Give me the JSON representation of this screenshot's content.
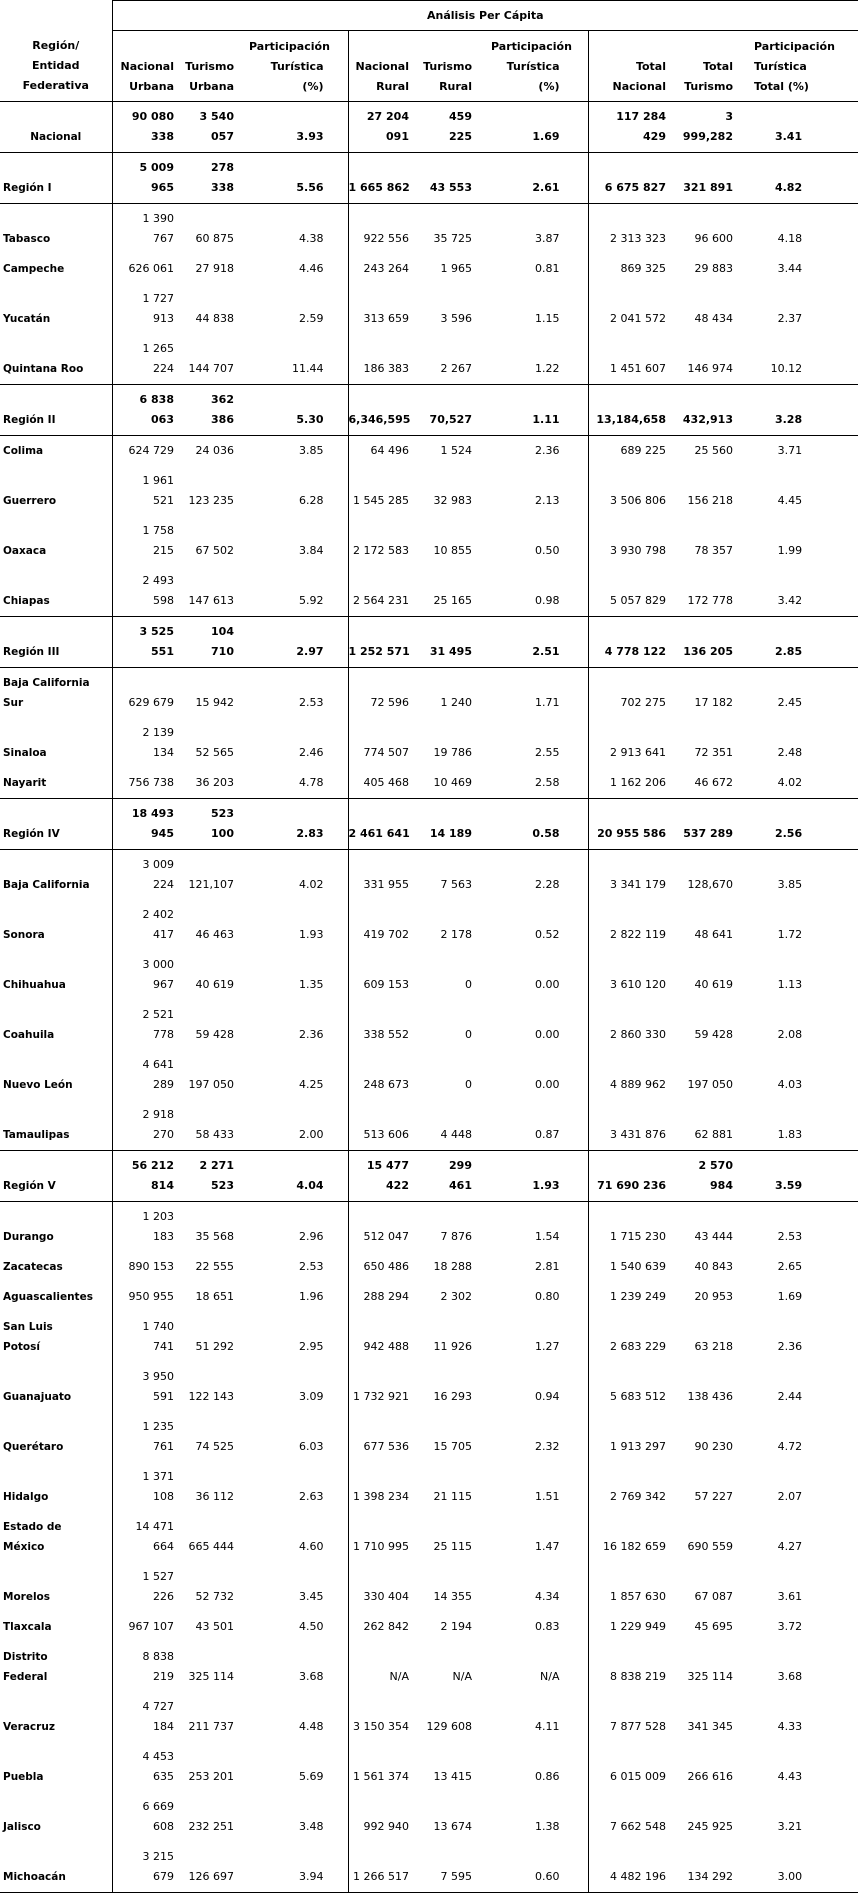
{
  "title": "Análisis Per Cápita",
  "header": {
    "row_label": "Región/\nEntidad\nFederativa",
    "columns": [
      "Nacional\nUrbana",
      "Turismo\nUrbana",
      "Participación\nTurística\n(%)",
      "Nacional\nRural",
      "Turismo\nRural",
      "Participación\nTurística\n(%)",
      "Total\nNacional",
      "Total\nTurismo",
      "Participación\nTurística\nTotal (%)"
    ]
  },
  "rows": [
    {
      "label": "Nacional",
      "summary": true,
      "cells": [
        "90 080\n338",
        "3 540\n057",
        "3.93",
        "27 204\n091",
        "459\n225",
        "1.69",
        "117 284\n429",
        "3\n999,282",
        "3.41"
      ]
    },
    {
      "label": "Región I",
      "summary": true,
      "cells": [
        "5 009\n965",
        "278\n338",
        "5.56",
        "1 665 862",
        "43 553",
        "2.61",
        "6 675 827",
        "321 891",
        "4.82"
      ]
    },
    {
      "label": "Tabasco",
      "summary": false,
      "cells": [
        "1 390\n767",
        "60 875",
        "4.38",
        "922 556",
        "35 725",
        "3.87",
        "2 313 323",
        "96 600",
        "4.18"
      ]
    },
    {
      "label": "Campeche",
      "summary": false,
      "cells": [
        "626 061",
        "27 918",
        "4.46",
        "243 264",
        "1 965",
        "0.81",
        "869 325",
        "29 883",
        "3.44"
      ]
    },
    {
      "label": "Yucatán",
      "summary": false,
      "cells": [
        "1 727\n913",
        "44 838",
        "2.59",
        "313 659",
        "3 596",
        "1.15",
        "2 041 572",
        "48 434",
        "2.37"
      ]
    },
    {
      "label": "Quintana Roo",
      "summary": false,
      "cells": [
        "1 265\n224",
        "144 707",
        "11.44",
        "186 383",
        "2 267",
        "1.22",
        "1 451 607",
        "146 974",
        "10.12"
      ]
    },
    {
      "label": "Región II",
      "summary": true,
      "cells": [
        "6 838\n063",
        "362\n386",
        "5.30",
        "6,346,595",
        "70,527",
        "1.11",
        "13,184,658",
        "432,913",
        "3.28"
      ]
    },
    {
      "label": "Colima",
      "summary": false,
      "cells": [
        "624 729",
        "24 036",
        "3.85",
        "64 496",
        "1 524",
        "2.36",
        "689 225",
        "25 560",
        "3.71"
      ]
    },
    {
      "label": "Guerrero",
      "summary": false,
      "cells": [
        "1 961\n521",
        "123 235",
        "6.28",
        "1 545 285",
        "32 983",
        "2.13",
        "3 506 806",
        "156 218",
        "4.45"
      ]
    },
    {
      "label": "Oaxaca",
      "summary": false,
      "cells": [
        "1 758\n215",
        "67 502",
        "3.84",
        "2 172 583",
        "10 855",
        "0.50",
        "3 930 798",
        "78 357",
        "1.99"
      ]
    },
    {
      "label": "Chiapas",
      "summary": false,
      "cells": [
        "2 493\n598",
        "147 613",
        "5.92",
        "2 564 231",
        "25 165",
        "0.98",
        "5 057 829",
        "172 778",
        "3.42"
      ]
    },
    {
      "label": "Región III",
      "summary": true,
      "cells": [
        "3 525\n551",
        "104\n710",
        "2.97",
        "1 252 571",
        "31 495",
        "2.51",
        "4 778 122",
        "136 205",
        "2.85"
      ]
    },
    {
      "label": "Baja California\nSur",
      "summary": false,
      "cells": [
        "629 679",
        "15 942",
        "2.53",
        "72 596",
        "1 240",
        "1.71",
        "702 275",
        "17 182",
        "2.45"
      ]
    },
    {
      "label": "Sinaloa",
      "summary": false,
      "cells": [
        "2 139\n134",
        "52 565",
        "2.46",
        "774 507",
        "19 786",
        "2.55",
        "2 913 641",
        "72 351",
        "2.48"
      ]
    },
    {
      "label": "Nayarit",
      "summary": false,
      "cells": [
        "756 738",
        "36 203",
        "4.78",
        "405 468",
        "10 469",
        "2.58",
        "1 162 206",
        "46 672",
        "4.02"
      ]
    },
    {
      "label": "Región IV",
      "summary": true,
      "cells": [
        "18 493\n945",
        "523\n100",
        "2.83",
        "2 461 641",
        "14 189",
        "0.58",
        "20 955 586",
        "537 289",
        "2.56"
      ]
    },
    {
      "label": "Baja California",
      "summary": false,
      "cells": [
        "3 009\n224",
        "121,107",
        "4.02",
        "331 955",
        "7 563",
        "2.28",
        "3 341 179",
        "128,670",
        "3.85"
      ]
    },
    {
      "label": "Sonora",
      "summary": false,
      "cells": [
        "2 402\n417",
        "46 463",
        "1.93",
        "419 702",
        "2 178",
        "0.52",
        "2 822 119",
        "48 641",
        "1.72"
      ]
    },
    {
      "label": "Chihuahua",
      "summary": false,
      "cells": [
        "3 000\n967",
        "40 619",
        "1.35",
        "609 153",
        "0",
        "0.00",
        "3 610 120",
        "40 619",
        "1.13"
      ]
    },
    {
      "label": "Coahuila",
      "summary": false,
      "cells": [
        "2 521\n778",
        "59 428",
        "2.36",
        "338 552",
        "0",
        "0.00",
        "2 860 330",
        "59 428",
        "2.08"
      ]
    },
    {
      "label": "Nuevo León",
      "summary": false,
      "cells": [
        "4 641\n289",
        "197 050",
        "4.25",
        "248 673",
        "0",
        "0.00",
        "4 889 962",
        "197 050",
        "4.03"
      ]
    },
    {
      "label": "Tamaulipas",
      "summary": false,
      "cells": [
        "2 918\n270",
        "58 433",
        "2.00",
        "513 606",
        "4 448",
        "0.87",
        "3 431 876",
        "62 881",
        "1.83"
      ]
    },
    {
      "label": "Región V",
      "summary": true,
      "cells": [
        "56 212\n814",
        "2 271\n523",
        "4.04",
        "15 477\n422",
        "299\n461",
        "1.93",
        "71 690 236",
        "2 570\n984",
        "3.59"
      ]
    },
    {
      "label": "Durango",
      "summary": false,
      "cells": [
        "1 203\n183",
        "35 568",
        "2.96",
        "512 047",
        "7 876",
        "1.54",
        "1 715 230",
        "43 444",
        "2.53"
      ]
    },
    {
      "label": "Zacatecas",
      "summary": false,
      "cells": [
        "890 153",
        "22 555",
        "2.53",
        "650 486",
        "18 288",
        "2.81",
        "1 540 639",
        "40 843",
        "2.65"
      ]
    },
    {
      "label": "Aguascalientes",
      "summary": false,
      "cells": [
        "950 955",
        "18 651",
        "1.96",
        "288 294",
        "2 302",
        "0.80",
        "1 239 249",
        "20 953",
        "1.69"
      ]
    },
    {
      "label": "San Luis\nPotosí",
      "summary": false,
      "cells": [
        "1 740\n741",
        "51 292",
        "2.95",
        "942 488",
        "11 926",
        "1.27",
        "2 683 229",
        "63 218",
        "2.36"
      ]
    },
    {
      "label": "Guanajuato",
      "summary": false,
      "cells": [
        "3 950\n591",
        "122 143",
        "3.09",
        "1 732 921",
        "16 293",
        "0.94",
        "5 683 512",
        "138 436",
        "2.44"
      ]
    },
    {
      "label": "Querétaro",
      "summary": false,
      "cells": [
        "1 235\n761",
        "74 525",
        "6.03",
        "677 536",
        "15 705",
        "2.32",
        "1 913 297",
        "90 230",
        "4.72"
      ]
    },
    {
      "label": "Hidalgo",
      "summary": false,
      "cells": [
        "1 371\n108",
        "36 112",
        "2.63",
        "1 398 234",
        "21 115",
        "1.51",
        "2 769 342",
        "57 227",
        "2.07"
      ]
    },
    {
      "label": "Estado de\nMéxico",
      "summary": false,
      "cells": [
        "14 471\n664",
        "665 444",
        "4.60",
        "1 710 995",
        "25 115",
        "1.47",
        "16 182 659",
        "690 559",
        "4.27"
      ]
    },
    {
      "label": "Morelos",
      "summary": false,
      "cells": [
        "1 527\n226",
        "52 732",
        "3.45",
        "330 404",
        "14 355",
        "4.34",
        "1 857 630",
        "67 087",
        "3.61"
      ]
    },
    {
      "label": "Tlaxcala",
      "summary": false,
      "cells": [
        "967 107",
        "43 501",
        "4.50",
        "262 842",
        "2 194",
        "0.83",
        "1 229 949",
        "45 695",
        "3.72"
      ]
    },
    {
      "label": "Distrito\nFederal",
      "summary": false,
      "cells": [
        "8 838\n219",
        "325 114",
        "3.68",
        "N/A",
        "N/A",
        "N/A",
        "8 838 219",
        "325 114",
        "3.68"
      ]
    },
    {
      "label": "Veracruz",
      "summary": false,
      "cells": [
        "4 727\n184",
        "211 737",
        "4.48",
        "3 150 354",
        "129 608",
        "4.11",
        "7 877 528",
        "341 345",
        "4.33"
      ]
    },
    {
      "label": "Puebla",
      "summary": false,
      "cells": [
        "4 453\n635",
        "253 201",
        "5.69",
        "1 561 374",
        "13 415",
        "0.86",
        "6 015 009",
        "266 616",
        "4.43"
      ]
    },
    {
      "label": "Jalisco",
      "summary": false,
      "cells": [
        "6 669\n608",
        "232 251",
        "3.48",
        "992 940",
        "13 674",
        "1.38",
        "7 662 548",
        "245 925",
        "3.21"
      ]
    },
    {
      "label": "Michoacán",
      "summary": false,
      "cells": [
        "3 215\n679",
        "126 697",
        "3.94",
        "1 266 517",
        "7 595",
        "0.60",
        "4 482 196",
        "134 292",
        "3.00"
      ]
    }
  ]
}
